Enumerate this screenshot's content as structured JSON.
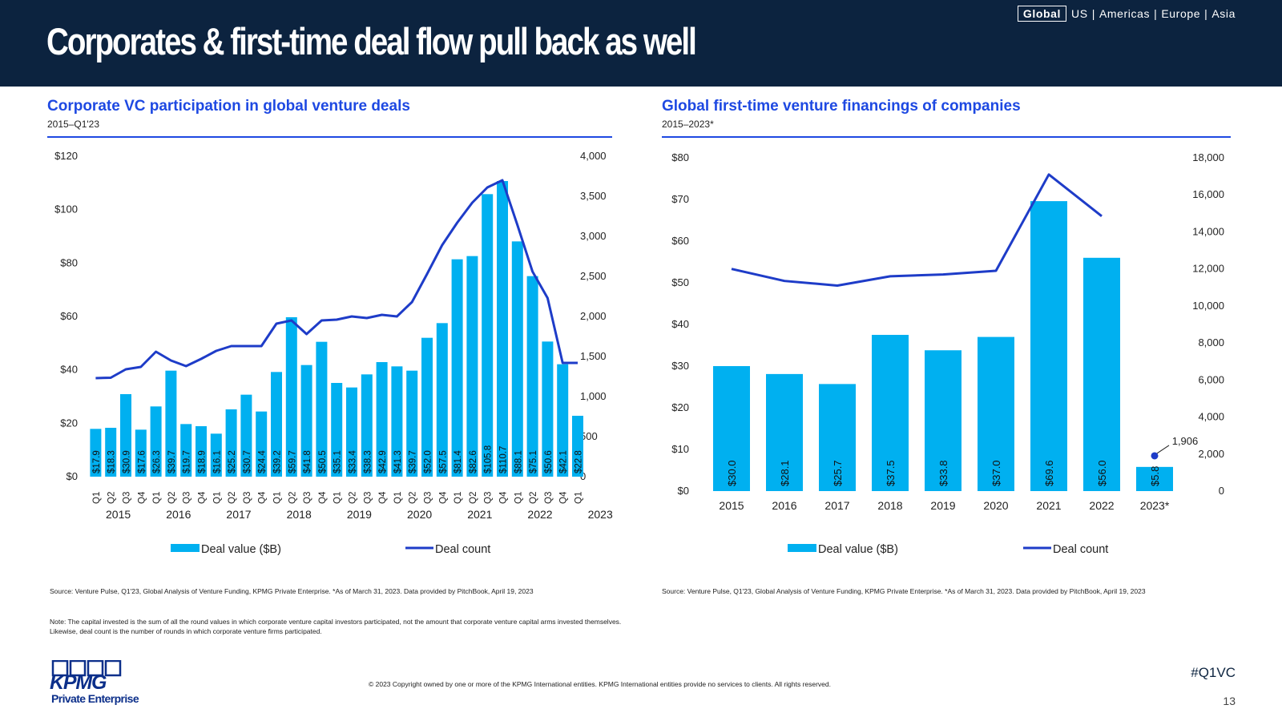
{
  "header": {
    "title": "Corporates & first-time deal flow pull back as well",
    "regions": {
      "active": "Global",
      "others": [
        "US",
        "Americas",
        "Europe",
        "Asia"
      ]
    }
  },
  "colors": {
    "bar": "#00b0f0",
    "line": "#1e3cc8",
    "title": "#1e49e2",
    "header_bg": "#0c233f"
  },
  "left_chart": {
    "title": "Corporate VC participation in global venture deals",
    "subtitle": "2015–Q1'23",
    "source": "Source: Venture Pulse, Q1'23, Global Analysis of Venture Funding, KPMG Private Enterprise. *As of March 31, 2023. Data provided by PitchBook, April 19, 2023",
    "note": "Note: The capital invested is the sum of all the round values in which corporate venture capital investors participated, not the amount that corporate venture capital arms invested themselves. Likewise, deal count is the number of rounds in which corporate venture firms participated."
  },
  "right_chart": {
    "title": "Global first-time venture financings of companies",
    "subtitle": "2015–2023*",
    "source": "Source: Venture Pulse, Q1'23, Global Analysis of Venture Funding, KPMG Private Enterprise. *As of March 31, 2023. Data provided by PitchBook, April 19, 2023"
  },
  "chart_data": [
    {
      "type": "bar",
      "combo": "bar+line",
      "categories": [
        "Q1",
        "Q2",
        "Q3",
        "Q4",
        "Q1",
        "Q2",
        "Q3",
        "Q4",
        "Q1",
        "Q2",
        "Q3",
        "Q4",
        "Q1",
        "Q2",
        "Q3",
        "Q4",
        "Q1",
        "Q2",
        "Q3",
        "Q4",
        "Q1",
        "Q2",
        "Q3",
        "Q4",
        "Q1",
        "Q2",
        "Q3",
        "Q4",
        "Q1",
        "Q2",
        "Q3",
        "Q4",
        "Q1"
      ],
      "years": [
        "2015",
        "2016",
        "2017",
        "2018",
        "2019",
        "2020",
        "2021",
        "2022",
        "2023"
      ],
      "series": [
        {
          "name": "Deal value ($B)",
          "axis": "left",
          "values": [
            17.9,
            18.3,
            30.9,
            17.6,
            26.3,
            39.7,
            19.7,
            18.9,
            16.1,
            25.2,
            30.7,
            24.4,
            39.2,
            59.7,
            41.8,
            50.5,
            35.1,
            33.4,
            38.3,
            42.9,
            41.3,
            39.7,
            52.0,
            57.5,
            81.4,
            82.6,
            105.8,
            110.7,
            88.1,
            75.1,
            50.6,
            42.1,
            22.8
          ],
          "labels": [
            "$17.9",
            "$18.3",
            "$30.9",
            "$17.6",
            "$26.3",
            "$39.7",
            "$19.7",
            "$18.9",
            "$16.1",
            "$25.2",
            "$30.7",
            "$24.4",
            "$39.2",
            "$59.7",
            "$41.8",
            "$50.5",
            "$35.1",
            "$33.4",
            "$38.3",
            "$42.9",
            "$41.3",
            "$39.7",
            "$52.0",
            "$57.5",
            "$81.4",
            "$82.6",
            "$105.8",
            "$110.7",
            "$88.1",
            "$75.1",
            "$50.6",
            "$42.1",
            "$22.8"
          ]
        },
        {
          "name": "Deal count",
          "axis": "right",
          "values": [
            1230,
            1235,
            1340,
            1370,
            1560,
            1450,
            1380,
            1470,
            1570,
            1630,
            1630,
            1630,
            1910,
            1950,
            1780,
            1950,
            1960,
            2000,
            1980,
            2020,
            2000,
            2180,
            2530,
            2890,
            3170,
            3420,
            3610,
            3700,
            3140,
            2560,
            2230,
            1420,
            1420
          ]
        }
      ],
      "y_left": {
        "min": 0,
        "max": 120,
        "ticks": [
          "$0",
          "$20",
          "$40",
          "$60",
          "$80",
          "$100",
          "$120"
        ]
      },
      "y_right": {
        "min": 0,
        "max": 4000,
        "ticks": [
          "0",
          "500",
          "1,000",
          "1,500",
          "2,000",
          "2,500",
          "3,000",
          "3,500",
          "4,000"
        ]
      },
      "legend": [
        "Deal value ($B)",
        "Deal count"
      ],
      "legend_position": "bottom",
      "grid": false
    },
    {
      "type": "bar",
      "combo": "bar+line",
      "categories": [
        "2015",
        "2016",
        "2017",
        "2018",
        "2019",
        "2020",
        "2021",
        "2022",
        "2023*"
      ],
      "series": [
        {
          "name": "Deal value ($B)",
          "axis": "left",
          "values": [
            30.0,
            28.1,
            25.7,
            37.5,
            33.8,
            37.0,
            69.6,
            56.0,
            5.8
          ],
          "labels": [
            "$30.0",
            "$28.1",
            "$25.7",
            "$37.5",
            "$33.8",
            "$37.0",
            "$69.6",
            "$56.0",
            "$5.8"
          ]
        },
        {
          "name": "Deal count",
          "axis": "right",
          "values": [
            12000,
            11350,
            11100,
            11600,
            11700,
            11900,
            17100,
            14850,
            1906
          ]
        }
      ],
      "point_label": "1,906",
      "y_left": {
        "min": 0,
        "max": 80,
        "ticks": [
          "$0",
          "$10",
          "$20",
          "$30",
          "$40",
          "$50",
          "$60",
          "$70",
          "$80"
        ]
      },
      "y_right": {
        "min": 0,
        "max": 18000,
        "ticks": [
          "0",
          "2,000",
          "4,000",
          "6,000",
          "8,000",
          "10,000",
          "12,000",
          "14,000",
          "16,000",
          "18,000"
        ]
      },
      "legend": [
        "Deal value ($B)",
        "Deal count"
      ],
      "legend_position": "bottom",
      "grid": false
    }
  ],
  "footer": {
    "copyright": "© 2023 Copyright owned by one or more of the KPMG International entities. KPMG International entities provide no services to clients. All rights reserved.",
    "hashtag": "#Q1VC",
    "page_number": "13",
    "logo_text": "KPMG",
    "logo_sub": "Private Enterprise"
  }
}
